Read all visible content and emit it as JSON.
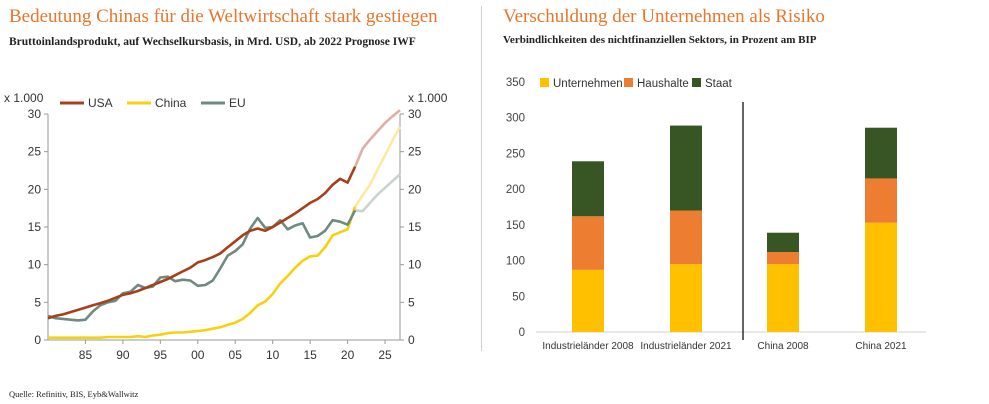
{
  "left": {
    "title": "Bedeutung Chinas für die Weltwirtschaft stark gestiegen",
    "subtitle": "Bruttoinlandsprodukt, auf Wechselkursbasis, in Mrd. USD, ab 2022 Prognose IWF"
  },
  "right": {
    "title": "Verschuldung der Unternehmen als Risiko",
    "subtitle": "Verbindlichkeiten des nichtfinanziellen Sektors, in Prozent am BIP"
  },
  "source": "Quelle: Refinitiv, BIS, Eyb&Wallwitz",
  "chart_data": [
    {
      "type": "line",
      "axis_unit_label": "x 1.000",
      "x_tick_labels": [
        "85",
        "90",
        "95",
        "00",
        "05",
        "10",
        "15",
        "20",
        "25"
      ],
      "x_ticks": [
        1985,
        1990,
        1995,
        2000,
        2005,
        2010,
        2015,
        2020,
        2025
      ],
      "xlim": [
        1980,
        2027
      ],
      "ylim": [
        0,
        30
      ],
      "y_ticks": [
        0,
        5,
        10,
        15,
        20,
        25,
        30
      ],
      "forecast_from": 2021,
      "legend_position": "top-left",
      "grid": false,
      "series": [
        {
          "name": "USA",
          "color": "#A5401A",
          "forecast_color": "#DDB0A6",
          "x": [
            1980,
            1981,
            1982,
            1983,
            1984,
            1985,
            1986,
            1987,
            1988,
            1989,
            1990,
            1991,
            1992,
            1993,
            1994,
            1995,
            1996,
            1997,
            1998,
            1999,
            2000,
            2001,
            2002,
            2003,
            2004,
            2005,
            2006,
            2007,
            2008,
            2009,
            2010,
            2011,
            2012,
            2013,
            2014,
            2015,
            2016,
            2017,
            2018,
            2019,
            2020,
            2021,
            2022,
            2023,
            2024,
            2025,
            2026,
            2027
          ],
          "values": [
            2.9,
            3.2,
            3.4,
            3.7,
            4.0,
            4.3,
            4.6,
            4.9,
            5.2,
            5.6,
            6.0,
            6.2,
            6.5,
            6.9,
            7.3,
            7.7,
            8.1,
            8.6,
            9.1,
            9.6,
            10.3,
            10.6,
            11.0,
            11.5,
            12.3,
            13.1,
            13.9,
            14.5,
            14.8,
            14.5,
            15.0,
            15.6,
            16.2,
            16.8,
            17.5,
            18.2,
            18.7,
            19.5,
            20.6,
            21.4,
            20.9,
            23.0,
            25.4,
            26.6,
            27.7,
            28.8,
            29.7,
            30.5
          ]
        },
        {
          "name": "China",
          "color": "#F5D10F",
          "forecast_color": "#FBEAA2",
          "x": [
            1980,
            1981,
            1982,
            1983,
            1984,
            1985,
            1986,
            1987,
            1988,
            1989,
            1990,
            1991,
            1992,
            1993,
            1994,
            1995,
            1996,
            1997,
            1998,
            1999,
            2000,
            2001,
            2002,
            2003,
            2004,
            2005,
            2006,
            2007,
            2008,
            2009,
            2010,
            2011,
            2012,
            2013,
            2014,
            2015,
            2016,
            2017,
            2018,
            2019,
            2020,
            2021,
            2022,
            2023,
            2024,
            2025,
            2026,
            2027
          ],
          "values": [
            0.3,
            0.3,
            0.3,
            0.3,
            0.3,
            0.3,
            0.3,
            0.3,
            0.4,
            0.4,
            0.4,
            0.4,
            0.5,
            0.4,
            0.6,
            0.7,
            0.9,
            1.0,
            1.0,
            1.1,
            1.2,
            1.3,
            1.5,
            1.7,
            2.0,
            2.3,
            2.8,
            3.6,
            4.6,
            5.1,
            6.1,
            7.5,
            8.5,
            9.6,
            10.5,
            11.1,
            11.2,
            12.3,
            13.9,
            14.3,
            14.7,
            17.7,
            19.2,
            20.6,
            22.6,
            24.5,
            26.5,
            28.3
          ]
        },
        {
          "name": "EU",
          "color": "#6F8A7E",
          "forecast_color": "#C9D3CF",
          "x": [
            1980,
            1981,
            1982,
            1983,
            1984,
            1985,
            1986,
            1987,
            1988,
            1989,
            1990,
            1991,
            1992,
            1993,
            1994,
            1995,
            1996,
            1997,
            1998,
            1999,
            2000,
            2001,
            2002,
            2003,
            2004,
            2005,
            2006,
            2007,
            2008,
            2009,
            2010,
            2011,
            2012,
            2013,
            2014,
            2015,
            2016,
            2017,
            2018,
            2019,
            2020,
            2021,
            2022,
            2023,
            2024,
            2025,
            2026,
            2027
          ],
          "values": [
            3.2,
            2.9,
            2.8,
            2.7,
            2.6,
            2.7,
            3.8,
            4.6,
            5.0,
            5.2,
            6.2,
            6.4,
            7.3,
            6.9,
            7.1,
            8.3,
            8.4,
            7.8,
            8.0,
            7.9,
            7.2,
            7.3,
            7.9,
            9.5,
            11.2,
            11.8,
            12.7,
            14.8,
            16.2,
            14.9,
            15.0,
            15.9,
            14.7,
            15.2,
            15.5,
            13.6,
            13.8,
            14.5,
            15.9,
            15.7,
            15.3,
            17.2,
            17.1,
            18.2,
            19.3,
            20.2,
            21.1,
            22.0
          ]
        }
      ]
    },
    {
      "type": "bar",
      "stacked": true,
      "categories": [
        "Industrieländer 2008",
        "Industrieländer 2021",
        "China 2008",
        "China 2021"
      ],
      "ylim": [
        0,
        350
      ],
      "y_ticks": [
        0,
        50,
        100,
        150,
        200,
        250,
        300,
        350
      ],
      "legend_position": "top-left",
      "grid": false,
      "series": [
        {
          "name": "Unternehmen",
          "color": "#FFC000",
          "values": [
            87,
            95,
            95,
            153
          ]
        },
        {
          "name": "Haushalte",
          "color": "#ED7D31",
          "values": [
            75,
            75,
            17,
            62
          ]
        },
        {
          "name": "Staat",
          "color": "#375623",
          "values": [
            77,
            119,
            27,
            71
          ]
        }
      ]
    }
  ]
}
